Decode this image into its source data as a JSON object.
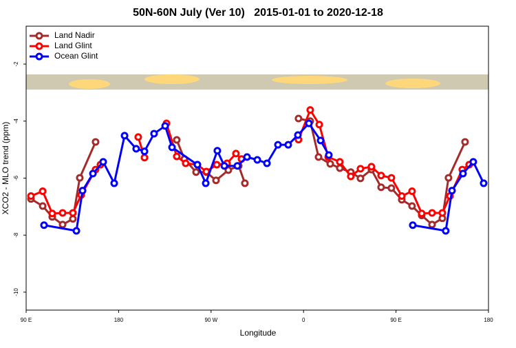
{
  "chart_data": {
    "type": "line",
    "title": "50N-60N July (Ver 10)   2015-01-01 to 2020-12-18",
    "xlabel": "Longitude",
    "ylabel": "XCO2 - MLO trend (ppm)",
    "xlim": [
      90,
      540
    ],
    "xticks": [
      {
        "value": 90,
        "label": "90 E"
      },
      {
        "value": 180,
        "label": "180"
      },
      {
        "value": 270,
        "label": "90 W"
      },
      {
        "value": 360,
        "label": "0"
      },
      {
        "value": 450,
        "label": "90 E"
      },
      {
        "value": 540,
        "label": "180"
      }
    ],
    "ylim": [
      -10.63,
      -0.67
    ],
    "yticks": [
      -2,
      -4,
      -6,
      -8,
      -10
    ],
    "legend": "top-left",
    "series": [
      {
        "name": "Land Nadir",
        "color": "#a52a2a",
        "x": [
          94.7,
          106.1,
          115.4,
          125.5,
          135.5,
          142.2,
          157.6,
          null,
          236.6,
          244.0,
          255.4,
          265.4,
          274.8,
          286.8,
          296.9,
          302.9,
          null,
          355.1,
          366.5,
          374.6,
          386.0,
          395.3,
          406.0,
          415.4,
          426.1,
          435.5,
          445.5,
          455.6,
          465.6,
          475.0,
          485.1,
          495.1,
          501.1,
          517.2
        ],
        "values": [
          -6.73,
          -6.98,
          -7.36,
          -7.63,
          -7.43,
          -5.99,
          -4.73,
          null,
          -4.66,
          -5.33,
          -5.79,
          -5.79,
          -6.08,
          -5.72,
          -5.57,
          -6.18,
          null,
          -3.91,
          -4.0,
          -5.26,
          -5.5,
          -5.65,
          -5.79,
          -6.01,
          -5.7,
          -6.32,
          -6.35,
          -6.76,
          -6.98,
          -7.31,
          -7.63,
          -7.41,
          -5.99,
          -4.73
        ]
      },
      {
        "name": "Land Glint",
        "color": "#ff0000",
        "x": [
          94.7,
          106.1,
          115.4,
          125.5,
          135.5,
          143.6,
          157.6,
          162.3,
          null,
          199.1,
          205.2,
          null,
          226.6,
          236.6,
          245.3,
          256.7,
          265.4,
          275.5,
          285.5,
          294.2,
          299.6,
          null,
          355.1,
          366.5,
          375.3,
          384.0,
          395.3,
          406.0,
          415.4,
          426.1,
          435.5,
          445.5,
          455.6,
          465.6,
          475.0,
          485.1,
          495.1,
          502.5,
          514.5,
          521.2
        ],
        "values": [
          -6.63,
          -6.46,
          -7.24,
          -7.22,
          -7.22,
          -6.59,
          -5.7,
          -5.53,
          null,
          -4.56,
          -5.28,
          null,
          -4.08,
          -5.24,
          -5.48,
          -5.53,
          -5.77,
          -5.53,
          -5.48,
          -5.14,
          -5.33,
          null,
          -4.65,
          -3.61,
          -4.12,
          -5.26,
          -5.43,
          -5.94,
          -5.67,
          -5.6,
          -5.91,
          -5.99,
          -6.63,
          -6.46,
          -7.24,
          -7.22,
          -7.22,
          -6.63,
          -5.7,
          -5.53
        ]
      },
      {
        "name": "Ocean Glint",
        "color": "#0000ff",
        "x": [
          107.4,
          138.9,
          144.9,
          155.0,
          165.0,
          175.7,
          185.8,
          197.1,
          205.2,
          214.5,
          225.3,
          232.0,
          256.7,
          264.8,
          276.1,
          282.9,
          295.6,
          305.0,
          315.0,
          324.4,
          335.1,
          345.1,
          354.5,
          365.2,
          376.6,
          384.6,
          null,
          466.3,
          498.4,
          504.5,
          515.2,
          525.2,
          535.3
        ],
        "values": [
          -7.65,
          -7.85,
          -6.44,
          -5.84,
          -5.43,
          -6.18,
          -4.51,
          -4.97,
          -5.06,
          -4.44,
          -4.17,
          -4.92,
          -5.53,
          -6.18,
          -5.04,
          -5.57,
          -5.57,
          -5.26,
          -5.36,
          -5.48,
          -4.83,
          -4.83,
          -4.49,
          -4.08,
          -4.68,
          -5.19,
          null,
          -7.65,
          -7.85,
          -6.44,
          -5.84,
          -5.43,
          -6.18
        ]
      }
    ]
  }
}
